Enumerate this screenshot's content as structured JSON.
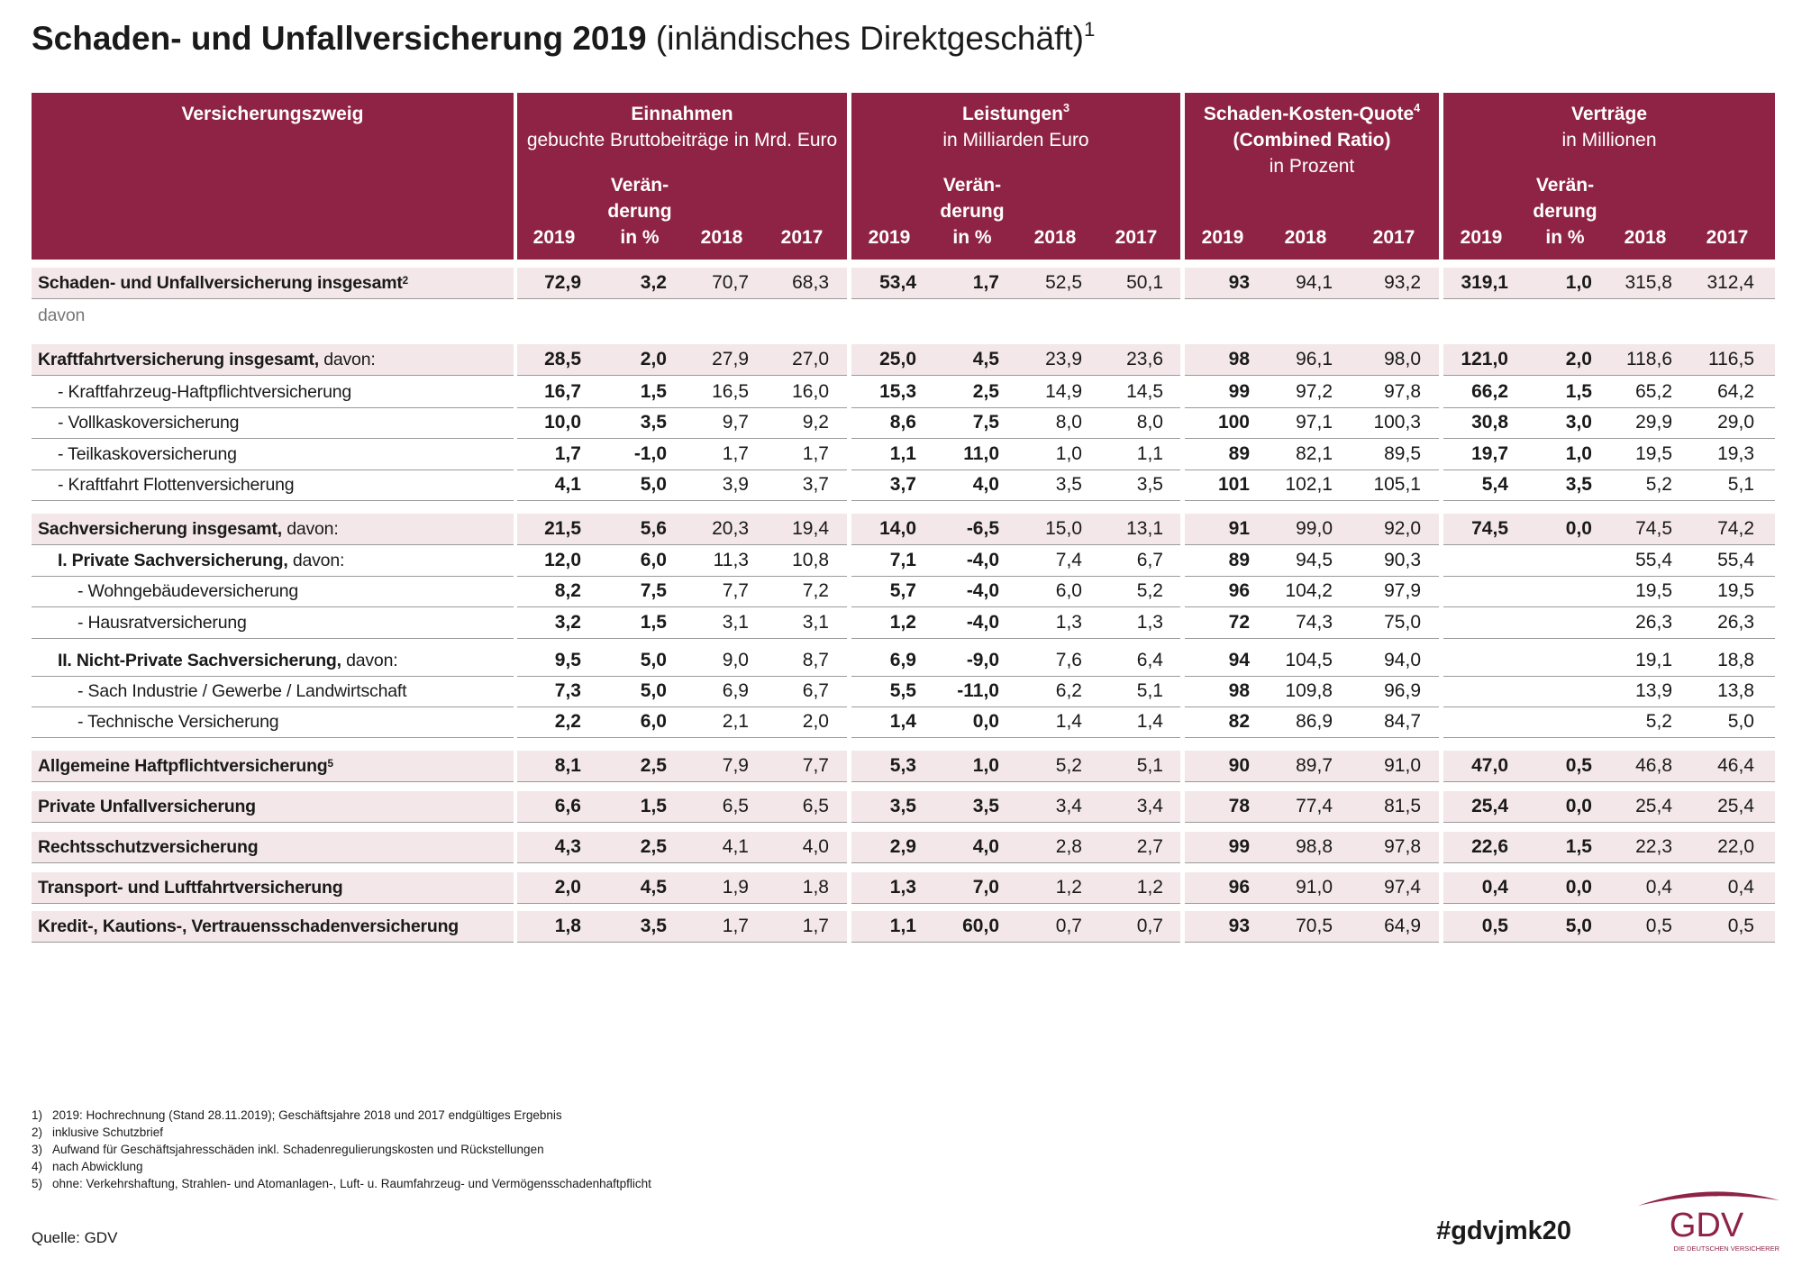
{
  "title": {
    "main": "Schaden- und Unfallversicherung 2019",
    "extra": "(inländisches Direktgeschäft)",
    "sup": "1"
  },
  "table": {
    "label_header": "Versicherungszweig",
    "groups": [
      {
        "title": [
          "Einnahmen"
        ],
        "subtitle": "gebuchte Bruttobeiträge in Mrd.  Euro",
        "columns": [
          {
            "lines": [
              "2019"
            ],
            "bold": true
          },
          {
            "lines": [
              "Verän-",
              "derung",
              "in %"
            ],
            "bold": true
          },
          {
            "lines": [
              "2018"
            ]
          },
          {
            "lines": [
              "2017"
            ]
          }
        ]
      },
      {
        "title": [
          "Leistungen"
        ],
        "sup": "3",
        "subtitle": "in Milliarden Euro",
        "columns": [
          {
            "lines": [
              "2019"
            ],
            "bold": true
          },
          {
            "lines": [
              "Verän-",
              "derung",
              "in %"
            ],
            "bold": true
          },
          {
            "lines": [
              "2018"
            ]
          },
          {
            "lines": [
              "2017"
            ]
          }
        ]
      },
      {
        "title": [
          "Schaden-Kosten-Quote",
          "(Combined Ratio)"
        ],
        "sup": "4",
        "subtitle": "in Prozent",
        "columns": [
          {
            "lines": [
              "2019"
            ],
            "bold": true
          },
          {
            "lines": [
              "2018"
            ]
          },
          {
            "lines": [
              "2017"
            ]
          }
        ]
      },
      {
        "title": [
          "Verträge"
        ],
        "subtitle": "in Millionen",
        "columns": [
          {
            "lines": [
              "2019"
            ],
            "bold": true
          },
          {
            "lines": [
              "Verän-",
              "derung",
              "in %"
            ],
            "bold": true
          },
          {
            "lines": [
              "2018"
            ]
          },
          {
            "lines": [
              "2017"
            ]
          }
        ]
      }
    ],
    "rows": [
      {
        "label": "Schaden- und Unfallversicherung insgesamt",
        "sup": "2",
        "kind": "total",
        "indent": 0,
        "values": [
          "72,9",
          "3,2",
          "70,7",
          "68,3",
          "53,4",
          "1,7",
          "52,5",
          "50,1",
          "93",
          "94,1",
          "93,2",
          "319,1",
          "1,0",
          "315,8",
          "312,4"
        ]
      },
      {
        "label": "davon",
        "kind": "note",
        "indent": 0
      },
      {
        "label": "Kraftfahrtversicherung  insgesamt,",
        "suffix": "davon:",
        "kind": "total",
        "indent": 0,
        "values": [
          "28,5",
          "2,0",
          "27,9",
          "27,0",
          "25,0",
          "4,5",
          "23,9",
          "23,6",
          "98",
          "96,1",
          "98,0",
          "121,0",
          "2,0",
          "118,6",
          "116,5"
        ]
      },
      {
        "label": "- Kraftfahrzeug-Haftpflichtversicherung",
        "kind": "item",
        "indent": 1,
        "values": [
          "16,7",
          "1,5",
          "16,5",
          "16,0",
          "15,3",
          "2,5",
          "14,9",
          "14,5",
          "99",
          "97,2",
          "97,8",
          "66,2",
          "1,5",
          "65,2",
          "64,2"
        ]
      },
      {
        "label": "- Vollkaskoversicherung",
        "kind": "item",
        "indent": 1,
        "values": [
          "10,0",
          "3,5",
          "9,7",
          "9,2",
          "8,6",
          "7,5",
          "8,0",
          "8,0",
          "100",
          "97,1",
          "100,3",
          "30,8",
          "3,0",
          "29,9",
          "29,0"
        ]
      },
      {
        "label": "- Teilkaskoversicherung",
        "kind": "item",
        "indent": 1,
        "values": [
          "1,7",
          "-1,0",
          "1,7",
          "1,7",
          "1,1",
          "11,0",
          "1,0",
          "1,1",
          "89",
          "82,1",
          "89,5",
          "19,7",
          "1,0",
          "19,5",
          "19,3"
        ]
      },
      {
        "label": "- Kraftfahrt Flottenversicherung",
        "kind": "item",
        "indent": 1,
        "values": [
          "4,1",
          "5,0",
          "3,9",
          "3,7",
          "3,7",
          "4,0",
          "3,5",
          "3,5",
          "101",
          "102,1",
          "105,1",
          "5,4",
          "3,5",
          "5,2",
          "5,1"
        ]
      },
      {
        "label": "Sachversicherung insgesamt,",
        "suffix": "davon:",
        "kind": "total",
        "indent": 0,
        "values": [
          "21,5",
          "5,6",
          "20,3",
          "19,4",
          "14,0",
          "-6,5",
          "15,0",
          "13,1",
          "91",
          "99,0",
          "92,0",
          "74,5",
          "0,0",
          "74,5",
          "74,2"
        ]
      },
      {
        "label": "I. Private Sachversicherung,",
        "suffix": "davon:",
        "kind": "sub",
        "indent": 1,
        "values": [
          "12,0",
          "6,0",
          "11,3",
          "10,8",
          "7,1",
          "-4,0",
          "7,4",
          "6,7",
          "89",
          "94,5",
          "90,3",
          null,
          null,
          "55,4",
          "55,4"
        ]
      },
      {
        "label": "- Wohngebäudeversicherung",
        "kind": "item",
        "indent": 2,
        "values": [
          "8,2",
          "7,5",
          "7,7",
          "7,2",
          "5,7",
          "-4,0",
          "6,0",
          "5,2",
          "96",
          "104,2",
          "97,9",
          null,
          null,
          "19,5",
          "19,5"
        ]
      },
      {
        "label": "- Hausratversicherung",
        "kind": "item",
        "indent": 2,
        "values": [
          "3,2",
          "1,5",
          "3,1",
          "3,1",
          "1,2",
          "-4,0",
          "1,3",
          "1,3",
          "72",
          "74,3",
          "75,0",
          null,
          null,
          "26,3",
          "26,3"
        ]
      },
      {
        "label": "II. Nicht-Private Sachversicherung,",
        "suffix": "davon:",
        "kind": "sub",
        "indent": 1,
        "values": [
          "9,5",
          "5,0",
          "9,0",
          "8,7",
          "6,9",
          "-9,0",
          "7,6",
          "6,4",
          "94",
          "104,5",
          "94,0",
          null,
          null,
          "19,1",
          "18,8"
        ]
      },
      {
        "label": "- Sach Industrie / Gewerbe / Landwirtschaft",
        "kind": "item",
        "indent": 2,
        "values": [
          "7,3",
          "5,0",
          "6,9",
          "6,7",
          "5,5",
          "-11,0",
          "6,2",
          "5,1",
          "98",
          "109,8",
          "96,9",
          null,
          null,
          "13,9",
          "13,8"
        ]
      },
      {
        "label": "- Technische Versicherung",
        "kind": "item",
        "indent": 2,
        "values": [
          "2,2",
          "6,0",
          "2,1",
          "2,0",
          "1,4",
          "0,0",
          "1,4",
          "1,4",
          "82",
          "86,9",
          "84,7",
          null,
          null,
          "5,2",
          "5,0"
        ]
      },
      {
        "label": "Allgemeine  Haftpflichtversicherung",
        "sup": "5",
        "kind": "total",
        "indent": 0,
        "values": [
          "8,1",
          "2,5",
          "7,9",
          "7,7",
          "5,3",
          "1,0",
          "5,2",
          "5,1",
          "90",
          "89,7",
          "91,0",
          "47,0",
          "0,5",
          "46,8",
          "46,4"
        ]
      },
      {
        "label": "Private Unfallversicherung",
        "kind": "total",
        "indent": 0,
        "values": [
          "6,6",
          "1,5",
          "6,5",
          "6,5",
          "3,5",
          "3,5",
          "3,4",
          "3,4",
          "78",
          "77,4",
          "81,5",
          "25,4",
          "0,0",
          "25,4",
          "25,4"
        ]
      },
      {
        "label": "Rechtsschutzversicherung",
        "kind": "total",
        "indent": 0,
        "values": [
          "4,3",
          "2,5",
          "4,1",
          "4,0",
          "2,9",
          "4,0",
          "2,8",
          "2,7",
          "99",
          "98,8",
          "97,8",
          "22,6",
          "1,5",
          "22,3",
          "22,0"
        ]
      },
      {
        "label": "Transport- und Luftfahrtversicherung",
        "kind": "total",
        "indent": 0,
        "values": [
          "2,0",
          "4,5",
          "1,9",
          "1,8",
          "1,3",
          "7,0",
          "1,2",
          "1,2",
          "96",
          "91,0",
          "97,4",
          "0,4",
          "0,0",
          "0,4",
          "0,4"
        ]
      },
      {
        "label": "Kredit-, Kautions-, Vertrauensschadenversicherung",
        "kind": "total",
        "indent": 0,
        "values": [
          "1,8",
          "3,5",
          "1,7",
          "1,7",
          "1,1",
          "60,0",
          "0,7",
          "0,7",
          "93",
          "70,5",
          "64,9",
          "0,5",
          "5,0",
          "0,5",
          "0,5"
        ]
      }
    ]
  },
  "footnotes": [
    {
      "number": "1)",
      "text": "2019: Hochrechnung (Stand 28.11.2019); Geschäftsjahre 2018 und 2017 endgültiges Ergebnis"
    },
    {
      "number": "2)",
      "text": "inklusive Schutzbrief"
    },
    {
      "number": "3)",
      "text": "Aufwand für Geschäftsjahresschäden inkl. Schadenregulierungskosten und Rückstellungen"
    },
    {
      "number": "4)",
      "text": "nach Abwicklung"
    },
    {
      "number": "5)",
      "text": "ohne: Verkehrshaftung, Strahlen- und Atomanlagen-, Luft- u. Raumfahrzeug- und Vermögensschadenhaftpflicht"
    }
  ],
  "source": "Quelle: GDV",
  "hashtag": "#gdvjmk20",
  "logo": {
    "text": "GDV",
    "tagline": "DIE DEUTSCHEN VERSICHERER"
  }
}
